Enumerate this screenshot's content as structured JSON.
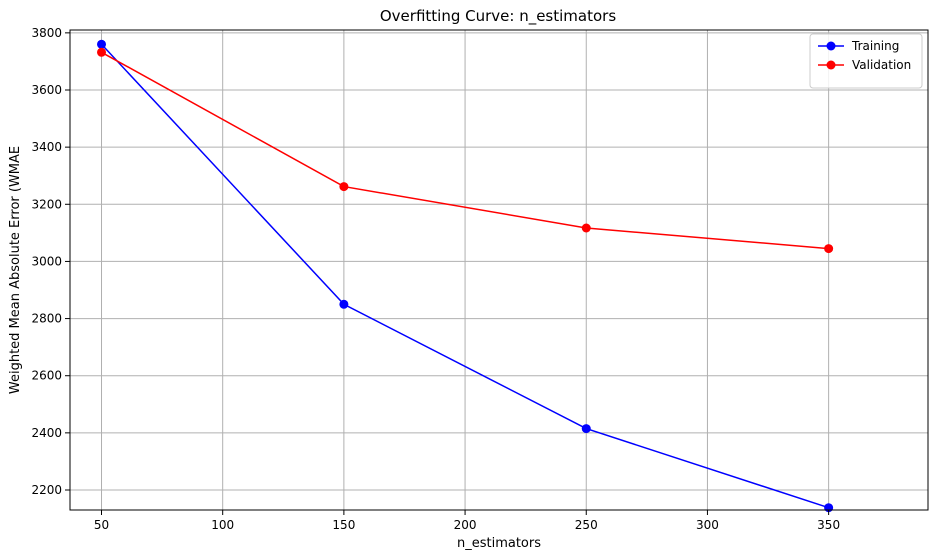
{
  "chart_data": {
    "type": "line",
    "title": "Overfitting Curve: n_estimators",
    "xlabel": "n_estimators",
    "ylabel": "Weighted Mean Absolute Error (WMAE",
    "x": [
      50,
      150,
      250,
      350
    ],
    "xlim": [
      37,
      391
    ],
    "ylim": [
      2130,
      3810
    ],
    "xticks": [
      50,
      100,
      150,
      200,
      250,
      300,
      350
    ],
    "yticks": [
      2200,
      2400,
      2600,
      2800,
      3000,
      3200,
      3400,
      3600,
      3800
    ],
    "grid": true,
    "legend_position": "top-right",
    "series": [
      {
        "name": "Training",
        "color": "#0000ff",
        "marker": "circle",
        "values": [
          3760,
          2850,
          2415,
          2138
        ]
      },
      {
        "name": "Validation",
        "color": "#ff0000",
        "marker": "circle",
        "values": [
          3732,
          3262,
          3117,
          3045
        ]
      }
    ]
  }
}
